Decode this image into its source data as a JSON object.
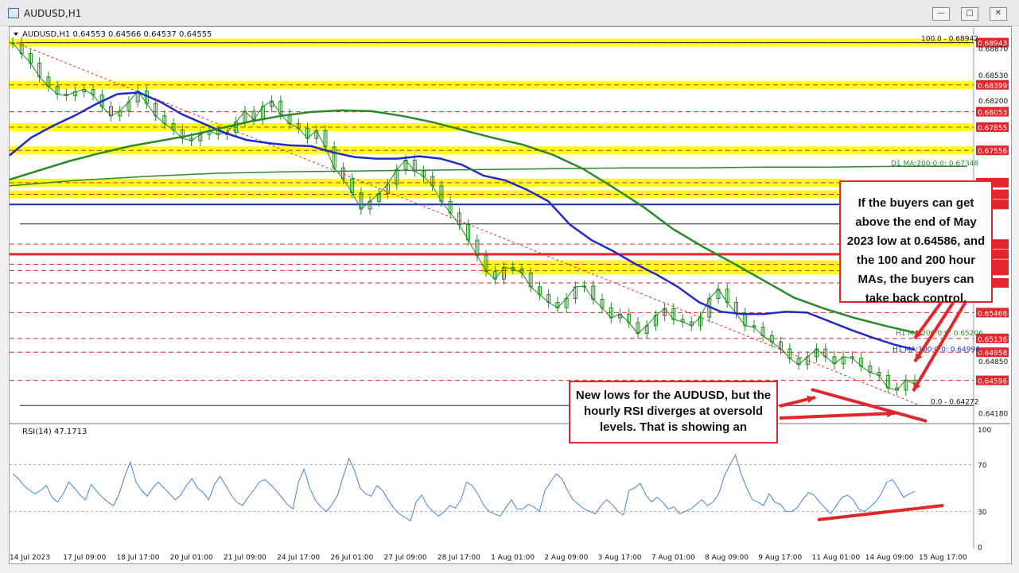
{
  "window": {
    "title": "AUDUSD,H1",
    "buttons": [
      "minimize-button",
      "maximize-button",
      "close-button"
    ]
  },
  "chart_data": {
    "type": "line",
    "symbol_header": "AUDUSD,H1  0.64553 0.64566 0.64537 0.64555",
    "ylim": [
      0.6405,
      0.69
    ],
    "y_ticks": [
      "0.68870",
      "0.68530",
      "0.68200",
      "0.64850",
      "0.64180"
    ],
    "x_ticks": [
      "14 Jul 2023",
      "17 Jul 09:00",
      "18 Jul 17:00",
      "20 Jul 01:00",
      "21 Jul 09:00",
      "24 Jul 17:00",
      "26 Jul 01:00",
      "27 Jul 09:00",
      "28 Jul 17:00",
      "1 Aug 01:00",
      "2 Aug 09:00",
      "3 Aug 17:00",
      "7 Aug 01:00",
      "8 Aug 09:00",
      "9 Aug 17:00",
      "11 Aug 01:00",
      "14 Aug 09:00",
      "15 Aug 17:00"
    ],
    "price_levels": [
      {
        "value": 0.68943,
        "label": "0.68943",
        "style": "yellow-zone"
      },
      {
        "value": 0.68399,
        "label": "0.68399",
        "style": "yellow-zone"
      },
      {
        "value": 0.68053,
        "label": "0.68053",
        "style": "red-dash"
      },
      {
        "value": 0.67855,
        "label": "0.67855",
        "style": "yellow-zone"
      },
      {
        "value": 0.67556,
        "label": "0.67556",
        "style": "yellow-zone"
      },
      {
        "value": 0.6714,
        "label": "139",
        "style": "yellow-zone-partial"
      },
      {
        "value": 0.6699,
        "label": "998",
        "style": "yellow-zone-partial"
      },
      {
        "value": 0.6686,
        "label": "860",
        "style": "blue-line"
      },
      {
        "value": 0.6635,
        "label": "350",
        "style": "red-dash"
      },
      {
        "value": 0.6622,
        "label": "221",
        "style": "red-solid"
      },
      {
        "value": 0.6609,
        "label": "087",
        "style": "yellow-zone"
      },
      {
        "value": 0.6601,
        "label": "014",
        "style": "yellow-zone"
      },
      {
        "value": 0.6585,
        "label": "850",
        "style": "red-dash"
      },
      {
        "value": 0.65468,
        "label": "0.65468",
        "style": "red-dash"
      },
      {
        "value": 0.65136,
        "label": "0.65136",
        "style": "red-dash"
      },
      {
        "value": 0.64958,
        "label": "0.64958",
        "style": "red-dash"
      },
      {
        "value": 0.64596,
        "label": "0.64596",
        "style": "red-dash"
      }
    ],
    "fib_labels": [
      "100.0 - 0.68942",
      "0.0 - 0.64272"
    ],
    "ma_labels": [
      "D1 MA:200:0:0: 0.67348",
      "H1 MA:200:0:0: 0.65206",
      "H1 MA:100:0:0: 0.64996"
    ],
    "price_series": [
      0.6894,
      0.688,
      0.6868,
      0.685,
      0.6838,
      0.6828,
      0.6826,
      0.6831,
      0.6834,
      0.6827,
      0.6812,
      0.68,
      0.6806,
      0.6818,
      0.6832,
      0.6816,
      0.68,
      0.679,
      0.6782,
      0.6771,
      0.6768,
      0.6776,
      0.6781,
      0.6776,
      0.6779,
      0.6792,
      0.6806,
      0.6795,
      0.6812,
      0.6819,
      0.6802,
      0.679,
      0.6784,
      0.6771,
      0.6781,
      0.676,
      0.6733,
      0.6719,
      0.6701,
      0.668,
      0.669,
      0.67,
      0.6712,
      0.6731,
      0.6743,
      0.6729,
      0.6722,
      0.671,
      0.669,
      0.6675,
      0.666,
      0.664,
      0.662,
      0.66,
      0.659,
      0.6605,
      0.6603,
      0.6598,
      0.658,
      0.657,
      0.656,
      0.6553,
      0.6565,
      0.658,
      0.6581,
      0.6564,
      0.6553,
      0.654,
      0.6545,
      0.6534,
      0.652,
      0.653,
      0.6543,
      0.6552,
      0.6538,
      0.6535,
      0.653,
      0.6541,
      0.6565,
      0.6577,
      0.656,
      0.6546,
      0.653,
      0.6528,
      0.6517,
      0.6509,
      0.65,
      0.6488,
      0.648,
      0.649,
      0.65,
      0.649,
      0.6481,
      0.649,
      0.6488,
      0.6478,
      0.647,
      0.6466,
      0.645,
      0.6447,
      0.646,
      0.6455
    ],
    "ma100_series": [
      0.6749,
      0.6772,
      0.6787,
      0.68,
      0.6815,
      0.6828,
      0.683,
      0.6818,
      0.6802,
      0.679,
      0.6778,
      0.6769,
      0.6765,
      0.6762,
      0.6761,
      0.6753,
      0.6747,
      0.6745,
      0.6745,
      0.6748,
      0.6745,
      0.6737,
      0.6723,
      0.6717,
      0.6705,
      0.669,
      0.666,
      0.664,
      0.6626,
      0.661,
      0.6596,
      0.658,
      0.656,
      0.6548,
      0.6545,
      0.6545,
      0.6548,
      0.6547,
      0.6536,
      0.6525,
      0.6515,
      0.6506,
      0.6499
    ],
    "ma200_series": [
      0.6718,
      0.673,
      0.6742,
      0.6752,
      0.6761,
      0.6768,
      0.6775,
      0.6784,
      0.6793,
      0.68,
      0.6805,
      0.6807,
      0.6806,
      0.68,
      0.6792,
      0.6782,
      0.6772,
      0.6763,
      0.675,
      0.6732,
      0.6708,
      0.6683,
      0.6654,
      0.6631,
      0.661,
      0.6588,
      0.6566,
      0.6552,
      0.654,
      0.653,
      0.6521
    ],
    "d1_ma200_series": [
      0.671,
      0.6717,
      0.6722,
      0.6726,
      0.6728,
      0.6729,
      0.673,
      0.6731,
      0.6732,
      0.6733,
      0.6733,
      0.6734,
      0.6734,
      0.6735,
      0.6735
    ],
    "rsi_header": "RSI(14) 47.1713",
    "rsi_ylim": [
      0,
      100
    ],
    "rsi_ticks": [
      "100",
      "70",
      "30",
      "0"
    ],
    "rsi_series": [
      62,
      58,
      52,
      48,
      45,
      48,
      52,
      42,
      38,
      45,
      55,
      50,
      44,
      40,
      53,
      47,
      42,
      38,
      35,
      45,
      60,
      72,
      55,
      48,
      43,
      50,
      55,
      50,
      45,
      40,
      44,
      52,
      58,
      50,
      46,
      40,
      53,
      60,
      52,
      44,
      38,
      35,
      42,
      48,
      55,
      57,
      53,
      48,
      42,
      36,
      32,
      55,
      66,
      50,
      40,
      34,
      30,
      36,
      44,
      60,
      75,
      65,
      50,
      45,
      43,
      52,
      48,
      40,
      33,
      28,
      25,
      22,
      38,
      44,
      35,
      30,
      26,
      30,
      35,
      33,
      40,
      55,
      52,
      45,
      36,
      30,
      28,
      26,
      33,
      40,
      32,
      32,
      36,
      34,
      30,
      48,
      55,
      62,
      58,
      48,
      40,
      36,
      32,
      30,
      28,
      35,
      40,
      36,
      30,
      27,
      48,
      50,
      54,
      44,
      38,
      42,
      38,
      32,
      34,
      28,
      30,
      32,
      36,
      40,
      35,
      38,
      45,
      60,
      70,
      78,
      62,
      50,
      40,
      38,
      35,
      45,
      38,
      36,
      30,
      30,
      33,
      40,
      46,
      44,
      38,
      33,
      28,
      35,
      42,
      44,
      40,
      32,
      30,
      34,
      38,
      45,
      55,
      57,
      50,
      42,
      45,
      47
    ]
  },
  "annotations": {
    "box1": "If the buyers can get above the end of May 2023 low at 0.64586, and the 100 and 200 hour MAs, the buyers can take back control.",
    "box2": "New lows for the AUDUSD, but the hourly RSI diverges at oversold levels. That is showing an"
  },
  "colors": {
    "candle_up": "#1f8a1f",
    "candle_down": "#1f8a1f",
    "ma100": "#1f2bc8",
    "ma200": "#2a8a2a",
    "red": "#e3262c",
    "yellow": "#ffff00",
    "rsi_line": "#3f86d6"
  }
}
